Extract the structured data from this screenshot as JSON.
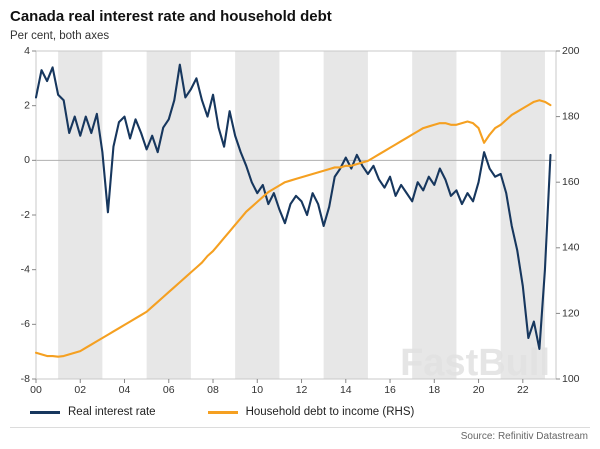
{
  "header": {
    "title": "Canada real interest rate and household debt",
    "subtitle": "Per cent, both axes"
  },
  "watermark": "FastBull",
  "legend": [
    {
      "label": "Real interest rate",
      "color": "#17375e"
    },
    {
      "label": "Household debt to income (RHS)",
      "color": "#f5a021"
    }
  ],
  "footer": {
    "source": "Source: Refinitiv Datastream"
  },
  "chart_data": {
    "type": "line",
    "title": "Canada real interest rate and household debt",
    "subtitle": "Per cent, both axes",
    "x_range": [
      2000,
      2023.5
    ],
    "x_start": 2000,
    "x_step": 0.25,
    "left_axis": {
      "label": "Per cent",
      "range": [
        -8,
        4
      ],
      "ticks": [
        -8,
        -6,
        -4,
        -2,
        0,
        2,
        4
      ]
    },
    "right_axis": {
      "label": "Per cent",
      "range": [
        100,
        200
      ],
      "ticks": [
        100,
        120,
        140,
        160,
        180,
        200
      ]
    },
    "x_ticks": {
      "values": [
        2000,
        2002,
        2004,
        2006,
        2008,
        2010,
        2012,
        2014,
        2016,
        2018,
        2020,
        2022
      ],
      "labels": [
        "00",
        "02",
        "04",
        "06",
        "08",
        "10",
        "12",
        "14",
        "16",
        "18",
        "20",
        "22"
      ]
    },
    "bands": [
      [
        2001,
        2003
      ],
      [
        2005,
        2007
      ],
      [
        2009,
        2011
      ],
      [
        2013,
        2015
      ],
      [
        2017,
        2019
      ],
      [
        2021,
        2023
      ]
    ],
    "band_color": "#e7e7e7",
    "zero_line": 0,
    "grid": false,
    "legend_position": "bottom",
    "series": [
      {
        "name": "Real interest rate",
        "axis": "left",
        "color": "#17375e",
        "values": [
          2.3,
          3.3,
          2.9,
          3.4,
          2.4,
          2.2,
          1.0,
          1.6,
          0.9,
          1.6,
          1.0,
          1.7,
          0.3,
          -1.9,
          0.5,
          1.4,
          1.6,
          0.8,
          1.5,
          1.0,
          0.4,
          0.9,
          0.3,
          1.2,
          1.5,
          2.2,
          3.5,
          2.3,
          2.6,
          3.0,
          2.2,
          1.6,
          2.4,
          1.2,
          0.5,
          1.8,
          0.9,
          0.3,
          -0.2,
          -0.8,
          -1.2,
          -0.9,
          -1.6,
          -1.2,
          -1.8,
          -2.3,
          -1.6,
          -1.3,
          -1.5,
          -2.0,
          -1.2,
          -1.6,
          -2.4,
          -1.7,
          -0.6,
          -0.3,
          0.1,
          -0.3,
          0.2,
          -0.2,
          -0.5,
          -0.2,
          -0.7,
          -1.0,
          -0.6,
          -1.3,
          -0.9,
          -1.2,
          -1.5,
          -0.8,
          -1.1,
          -0.6,
          -0.9,
          -0.3,
          -0.7,
          -1.3,
          -1.1,
          -1.6,
          -1.2,
          -1.5,
          -0.8,
          0.3,
          -0.3,
          -0.6,
          -0.5,
          -1.2,
          -2.4,
          -3.3,
          -4.6,
          -6.5,
          -5.9,
          -6.9,
          -4.0,
          0.2
        ]
      },
      {
        "name": "Household debt to income (RHS)",
        "axis": "right",
        "color": "#f5a021",
        "values": [
          108,
          107.5,
          107,
          107,
          106.8,
          107,
          107.5,
          108,
          108.5,
          109.5,
          110.5,
          111.5,
          112.5,
          113.5,
          114.5,
          115.5,
          116.5,
          117.5,
          118.5,
          119.5,
          120.5,
          122,
          123.5,
          125,
          126.5,
          128,
          129.5,
          131,
          132.5,
          134,
          135.5,
          137.5,
          139,
          141,
          143,
          145,
          147,
          149,
          151,
          152.5,
          154,
          155.5,
          157,
          158,
          159,
          160,
          160.5,
          161,
          161.5,
          162,
          162.5,
          163,
          163.5,
          164,
          164.5,
          164.5,
          165,
          165,
          165.5,
          166,
          166.5,
          167.5,
          168.5,
          169.5,
          170.5,
          171.5,
          172.5,
          173.5,
          174.5,
          175.5,
          176.5,
          177,
          177.5,
          178,
          178,
          177.5,
          177.5,
          178,
          178.5,
          178,
          176.5,
          172,
          174.5,
          176.5,
          177.5,
          179,
          180.5,
          181.5,
          182.5,
          183.5,
          184.5,
          185,
          184.5,
          183.5
        ]
      }
    ]
  }
}
